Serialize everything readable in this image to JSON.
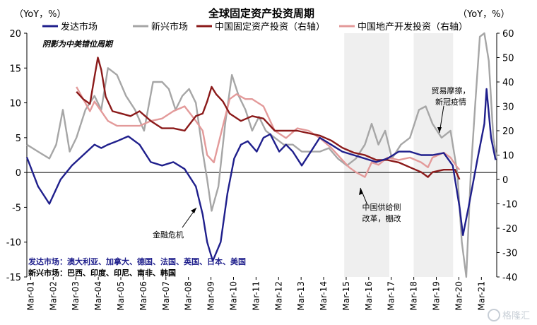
{
  "chart_data": {
    "type": "line",
    "title": "全球固定资产投资周期",
    "left_axis_unit": "（YoY，%）",
    "right_axis_unit": "（YoY，%）",
    "y_left_range": [
      -15,
      20
    ],
    "y_left_ticks": [
      "20",
      "15",
      "10",
      "5",
      "0",
      "-5",
      "-10",
      "-15"
    ],
    "y_right_range": [
      -40,
      60
    ],
    "y_right_ticks": [
      "60",
      "50",
      "40",
      "30",
      "20",
      "10",
      "0",
      "-10",
      "-20",
      "-30",
      "-40"
    ],
    "x_ticks": [
      "Mar-01",
      "Mar-02",
      "Mar-03",
      "Mar-04",
      "Mar-05",
      "Mar-06",
      "Mar-07",
      "Mar-08",
      "Mar-09",
      "Mar-10",
      "Mar-11",
      "Mar-12",
      "Mar-13",
      "Mar-14",
      "Mar-15",
      "Mar-16",
      "Mar-17",
      "Mar-18",
      "Mar-19",
      "Mar-20",
      "Mar-21"
    ],
    "legend_position": "top",
    "shading_note": "阴影为中美错位周期",
    "shaded_periods": [
      [
        "2015-02",
        "2017-02"
      ],
      [
        "2018-03",
        "2019-12"
      ]
    ],
    "series": [
      {
        "name": "发达市场",
        "axis": "left",
        "color": "#1f1f8c",
        "points": [
          [
            2001.0,
            2.2
          ],
          [
            2001.5,
            -2
          ],
          [
            2002.0,
            -4.5
          ],
          [
            2002.5,
            -1
          ],
          [
            2003.0,
            1
          ],
          [
            2003.5,
            2.5
          ],
          [
            2004.0,
            4
          ],
          [
            2004.3,
            3.5
          ],
          [
            2004.6,
            4
          ],
          [
            2005.0,
            4.5
          ],
          [
            2005.5,
            5.2
          ],
          [
            2006.0,
            4
          ],
          [
            2006.5,
            1.5
          ],
          [
            2007.0,
            1
          ],
          [
            2007.5,
            1.5
          ],
          [
            2008.0,
            0.5
          ],
          [
            2008.5,
            -2
          ],
          [
            2008.8,
            -6
          ],
          [
            2009.0,
            -10
          ],
          [
            2009.25,
            -12.7
          ],
          [
            2009.6,
            -10
          ],
          [
            2009.9,
            -3
          ],
          [
            2010.2,
            2
          ],
          [
            2010.5,
            4
          ],
          [
            2010.8,
            4.5
          ],
          [
            2011.2,
            3
          ],
          [
            2011.5,
            5
          ],
          [
            2011.8,
            5.5
          ],
          [
            2012.2,
            3
          ],
          [
            2012.5,
            4
          ],
          [
            2012.8,
            3
          ],
          [
            2013.2,
            1
          ],
          [
            2013.6,
            3
          ],
          [
            2014.0,
            5
          ],
          [
            2014.5,
            4
          ],
          [
            2015.0,
            3
          ],
          [
            2015.5,
            2.5
          ],
          [
            2016.0,
            2
          ],
          [
            2016.5,
            1.5
          ],
          [
            2017.0,
            2
          ],
          [
            2017.5,
            3
          ],
          [
            2018.0,
            3
          ],
          [
            2018.5,
            2.5
          ],
          [
            2019.0,
            2.5
          ],
          [
            2019.5,
            2.8
          ],
          [
            2019.9,
            1
          ],
          [
            2020.2,
            -5
          ],
          [
            2020.35,
            -9
          ],
          [
            2020.6,
            -5
          ],
          [
            2021.0,
            2
          ],
          [
            2021.3,
            7
          ],
          [
            2021.4,
            12
          ],
          [
            2021.6,
            5
          ],
          [
            2021.8,
            1.8
          ]
        ]
      },
      {
        "name": "新兴市场",
        "axis": "left",
        "color": "#a6a6a6",
        "points": [
          [
            2001.0,
            4
          ],
          [
            2001.5,
            3
          ],
          [
            2002.0,
            2
          ],
          [
            2002.3,
            4
          ],
          [
            2002.6,
            9
          ],
          [
            2002.9,
            3
          ],
          [
            2003.2,
            5
          ],
          [
            2003.6,
            9
          ],
          [
            2004.0,
            11
          ],
          [
            2004.3,
            9
          ],
          [
            2004.6,
            15
          ],
          [
            2005.0,
            14
          ],
          [
            2005.4,
            11
          ],
          [
            2005.8,
            9
          ],
          [
            2006.2,
            6
          ],
          [
            2006.6,
            13
          ],
          [
            2007.0,
            13
          ],
          [
            2007.3,
            12
          ],
          [
            2007.6,
            9
          ],
          [
            2007.9,
            11
          ],
          [
            2008.2,
            12
          ],
          [
            2008.5,
            10
          ],
          [
            2008.8,
            3
          ],
          [
            2009.0,
            -1
          ],
          [
            2009.2,
            -5.5
          ],
          [
            2009.5,
            -2
          ],
          [
            2009.8,
            7
          ],
          [
            2010.1,
            14
          ],
          [
            2010.4,
            11
          ],
          [
            2010.7,
            9
          ],
          [
            2011.0,
            6
          ],
          [
            2011.3,
            8
          ],
          [
            2011.6,
            6
          ],
          [
            2012.0,
            5
          ],
          [
            2012.4,
            4
          ],
          [
            2012.8,
            4
          ],
          [
            2013.2,
            3
          ],
          [
            2013.6,
            3
          ],
          [
            2014.0,
            3
          ],
          [
            2014.4,
            3.5
          ],
          [
            2014.8,
            2
          ],
          [
            2015.2,
            1
          ],
          [
            2015.6,
            2
          ],
          [
            2016.0,
            4
          ],
          [
            2016.3,
            7
          ],
          [
            2016.6,
            4
          ],
          [
            2016.9,
            6
          ],
          [
            2017.2,
            2
          ],
          [
            2017.6,
            4
          ],
          [
            2018.0,
            5
          ],
          [
            2018.4,
            9
          ],
          [
            2018.7,
            9.5
          ],
          [
            2019.0,
            7
          ],
          [
            2019.4,
            5
          ],
          [
            2019.8,
            6
          ],
          [
            2020.1,
            0
          ],
          [
            2020.3,
            -10
          ],
          [
            2020.5,
            -15
          ],
          [
            2020.7,
            0
          ],
          [
            2020.9,
            10
          ],
          [
            2021.1,
            19.5
          ],
          [
            2021.3,
            20
          ],
          [
            2021.5,
            16
          ],
          [
            2021.7,
            5
          ],
          [
            2021.85,
            2
          ]
        ]
      },
      {
        "name": "中国固定资产投资（右轴）",
        "axis": "right",
        "color": "#8b1a1a",
        "points": [
          [
            2003.2,
            36
          ],
          [
            2003.5,
            33
          ],
          [
            2003.8,
            31
          ],
          [
            2004.0,
            42
          ],
          [
            2004.15,
            50
          ],
          [
            2004.3,
            45
          ],
          [
            2004.5,
            34
          ],
          [
            2004.8,
            28
          ],
          [
            2005.2,
            27
          ],
          [
            2005.6,
            26
          ],
          [
            2006.0,
            28
          ],
          [
            2006.5,
            24
          ],
          [
            2007.0,
            21
          ],
          [
            2007.5,
            21
          ],
          [
            2008.0,
            20
          ],
          [
            2008.5,
            26
          ],
          [
            2008.8,
            27
          ],
          [
            2009.0,
            32
          ],
          [
            2009.2,
            38
          ],
          [
            2009.4,
            35
          ],
          [
            2009.7,
            32
          ],
          [
            2010.0,
            27
          ],
          [
            2010.5,
            24
          ],
          [
            2011.0,
            26
          ],
          [
            2011.5,
            25
          ],
          [
            2012.0,
            20
          ],
          [
            2012.5,
            20
          ],
          [
            2013.0,
            20
          ],
          [
            2013.5,
            19
          ],
          [
            2014.0,
            18
          ],
          [
            2014.5,
            16
          ],
          [
            2015.0,
            13
          ],
          [
            2015.5,
            11
          ],
          [
            2016.0,
            10
          ],
          [
            2016.5,
            8
          ],
          [
            2017.0,
            8
          ],
          [
            2017.5,
            7
          ],
          [
            2018.0,
            5
          ],
          [
            2018.5,
            3
          ],
          [
            2018.8,
            1
          ],
          [
            2019.0,
            3
          ],
          [
            2019.5,
            4
          ],
          [
            2020.0,
            4
          ],
          [
            2020.2,
            0
          ]
        ]
      },
      {
        "name": "中国地产开发投资（右轴）",
        "axis": "right",
        "color": "#e39a9a",
        "points": [
          [
            2003.2,
            38
          ],
          [
            2003.5,
            33
          ],
          [
            2003.8,
            28
          ],
          [
            2004.0,
            32
          ],
          [
            2004.3,
            28
          ],
          [
            2004.6,
            24
          ],
          [
            2005.0,
            22
          ],
          [
            2005.5,
            22
          ],
          [
            2006.0,
            22
          ],
          [
            2006.5,
            24
          ],
          [
            2007.0,
            25
          ],
          [
            2007.5,
            28
          ],
          [
            2008.0,
            30
          ],
          [
            2008.5,
            24
          ],
          [
            2008.8,
            20
          ],
          [
            2009.0,
            10
          ],
          [
            2009.3,
            7
          ],
          [
            2009.7,
            22
          ],
          [
            2010.0,
            33
          ],
          [
            2010.3,
            35
          ],
          [
            2010.7,
            33
          ],
          [
            2011.0,
            33
          ],
          [
            2011.5,
            30
          ],
          [
            2012.0,
            20
          ],
          [
            2012.5,
            17
          ],
          [
            2013.0,
            21
          ],
          [
            2013.5,
            20
          ],
          [
            2014.0,
            17
          ],
          [
            2014.5,
            13
          ],
          [
            2015.0,
            8
          ],
          [
            2015.3,
            5
          ],
          [
            2015.6,
            3
          ],
          [
            2016.0,
            1
          ],
          [
            2016.3,
            7
          ],
          [
            2016.6,
            6
          ],
          [
            2017.0,
            9
          ],
          [
            2017.5,
            8
          ],
          [
            2018.0,
            9
          ],
          [
            2018.5,
            7
          ],
          [
            2018.8,
            5
          ],
          [
            2019.0,
            9
          ],
          [
            2019.5,
            11
          ],
          [
            2019.8,
            9
          ],
          [
            2020.1,
            5
          ],
          [
            2020.2,
            4
          ]
        ]
      }
    ],
    "annotations": {
      "finance_crisis": "金融危机",
      "supply_reform": "中国供给侧\n改革，棚改",
      "trade_war": "贸易摩擦，\n新冠疫情"
    },
    "footnote_developed": "发达市场：澳大利亚、加拿大、德国、法国、英国、日本、美国",
    "footnote_emerging": "新兴市场：巴西、印度、印尼、南非、韩国",
    "watermark": "格隆汇"
  }
}
